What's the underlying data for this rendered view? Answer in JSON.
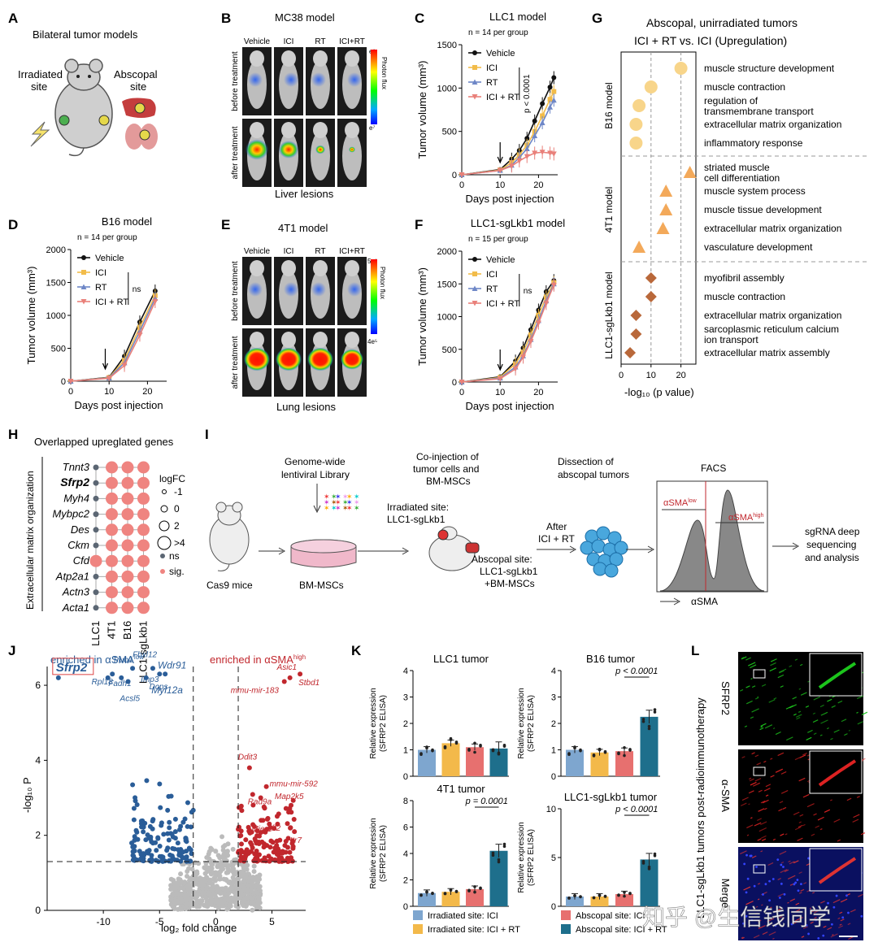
{
  "panels": {
    "A": {
      "letter": "A",
      "title": "Bilateral tumor models",
      "irradiated": [
        "Irradiated",
        "site"
      ],
      "abscopal": [
        "Abscopal",
        "site"
      ]
    },
    "B": {
      "letter": "B",
      "title": "MC38 model",
      "cols": [
        "Vehicle",
        "ICI",
        "RT",
        "ICI+RT"
      ],
      "rows": [
        "before treatment",
        "after treatment"
      ],
      "footer": "Liver lesions",
      "scale_top": "e⁸",
      "scale_bottom": "e⁷",
      "scale_label": "Photon flux"
    },
    "E": {
      "letter": "E",
      "title": "4T1 model",
      "cols": [
        "Vehicle",
        "ICI",
        "RT",
        "ICI+RT"
      ],
      "rows": [
        "before treatment",
        "after treatment"
      ],
      "footer": "Lung lesions",
      "scale_top": "5e⁶",
      "scale_bottom": "4e⁵",
      "scale_label": "Photon flux"
    },
    "G": {
      "letter": "G",
      "title": [
        "Abscopal, unirradiated tumors",
        "ICI + RT vs. ICI (Upregulation)"
      ],
      "xlabel": "-log₁₀ (p value)"
    },
    "H": {
      "letter": "H",
      "title": "Overlapped upreglated genes",
      "ylabel": "Extracellular matrix organization",
      "legend_title": "logFC",
      "legend_sizes": [
        "-1",
        "0",
        "2",
        ">4"
      ],
      "legend_ns": "ns",
      "legend_sig": "sig."
    },
    "I": {
      "letter": "I",
      "mice": "Cas9 mice",
      "library": [
        "Genome-wide",
        "lentiviral Library"
      ],
      "bmsc": "BM-MSCs",
      "coinj": [
        "Co-injection of",
        "tumor cells and",
        "BM-MSCs"
      ],
      "irr": [
        "Irradiated site:",
        "LLC1-sgLkb1"
      ],
      "absc": [
        "Abscopal site:",
        "LLC1-sgLkb1",
        "+BM-MSCs"
      ],
      "after": [
        "After",
        "ICI + RT"
      ],
      "dissection": [
        "Dissection of",
        "abscopal tumors"
      ],
      "facs": "FACS",
      "low": "αSMA",
      "low_sup": "low",
      "high": "αSMA",
      "high_sup": "high",
      "axis": "αSMA",
      "seq": [
        "sgRNA deep",
        "sequencing",
        "and analysis"
      ]
    },
    "J": {
      "letter": "J",
      "enriched_low": "enriched in αSMA",
      "low_sup": "low",
      "enriched_high": "enriched in αSMA",
      "high_sup": "high",
      "highlight": "Sfrp2",
      "xlabel": "log₂ fold change",
      "ylabel": "-log₁₀ P"
    },
    "K": {
      "letter": "K",
      "ylabel": [
        "Relative expression",
        "(SFRP2 ELISA)"
      ],
      "legend": [
        "Irradiated site: ICI",
        "Irradiated site: ICI + RT",
        "Abscopal site: ICI",
        "Abscopal site: ICI + RT"
      ]
    },
    "L": {
      "letter": "L",
      "side": "LLC1-sgLkb1 tumors post-radioimmunotherapy",
      "channels": [
        "SFRP2",
        "α-SMA",
        "Merge"
      ]
    }
  },
  "watermark": "知乎 @生信钱同学",
  "colors": {
    "vehicle": "#111111",
    "ici": "#f2bc4a",
    "rt": "#6e87c7",
    "icirt": "#e9807a",
    "b16": "#f8d58a",
    "t41": "#f3a95a",
    "llc": "#b9683a",
    "blue": "#2a5d98",
    "red": "#c1272d",
    "gray": "#bbbbbb",
    "k1": "#7ea6cf",
    "k2": "#f3b94a",
    "k3": "#e7706f",
    "k4": "#1e6f8c"
  },
  "chart_data": [
    {
      "id": "C",
      "type": "line",
      "title": "LLC1 model",
      "note": "n = 14 per group",
      "xlabel": "Days post injection",
      "ylabel": "Tumor volume (mm³)",
      "xlim": [
        0,
        25
      ],
      "ylim": [
        0,
        1500
      ],
      "xticks": [
        0,
        10,
        20
      ],
      "yticks": [
        0,
        500,
        1000,
        1500
      ],
      "stat": "p < 0.0001",
      "arrow_x": 10,
      "x": [
        0,
        10,
        13,
        15,
        17,
        19,
        21,
        23,
        24
      ],
      "series": [
        {
          "name": "Vehicle",
          "values": [
            0,
            60,
            180,
            280,
            420,
            620,
            820,
            1010,
            1120
          ]
        },
        {
          "name": "ICI",
          "values": [
            0,
            55,
            140,
            230,
            340,
            500,
            680,
            870,
            960
          ]
        },
        {
          "name": "RT",
          "values": [
            0,
            50,
            110,
            200,
            300,
            450,
            600,
            780,
            860
          ]
        },
        {
          "name": "ICI + RT",
          "values": [
            0,
            50,
            100,
            160,
            210,
            250,
            260,
            250,
            240
          ]
        }
      ]
    },
    {
      "id": "D",
      "type": "line",
      "title": "B16 model",
      "note": "n = 14 per group",
      "xlabel": "Days post injection",
      "ylabel": "Tumor volume (mm³)",
      "xlim": [
        0,
        25
      ],
      "ylim": [
        0,
        2000
      ],
      "xticks": [
        0,
        10,
        20
      ],
      "yticks": [
        0,
        500,
        1000,
        1500,
        2000
      ],
      "stat": "ns",
      "arrow_x": 9,
      "x": [
        0,
        10,
        14,
        18,
        22
      ],
      "series": [
        {
          "name": "Vehicle",
          "values": [
            0,
            60,
            380,
            900,
            1370
          ]
        },
        {
          "name": "ICI",
          "values": [
            0,
            55,
            320,
            820,
            1300
          ]
        },
        {
          "name": "RT",
          "values": [
            0,
            50,
            280,
            760,
            1260
          ]
        },
        {
          "name": "ICI + RT",
          "values": [
            0,
            45,
            240,
            700,
            1210
          ]
        }
      ]
    },
    {
      "id": "F",
      "type": "line",
      "title": "LLC1-sgLkb1 model",
      "note": "n = 15 per group",
      "xlabel": "Days post injection",
      "ylabel": "Tumor volume (mm³)",
      "xlim": [
        0,
        25
      ],
      "ylim": [
        0,
        2000
      ],
      "xticks": [
        0,
        10,
        20
      ],
      "yticks": [
        0,
        500,
        1000,
        1500,
        2000
      ],
      "stat": "ns",
      "arrow_x": 10,
      "x": [
        0,
        10,
        14,
        16,
        18,
        20,
        22,
        24
      ],
      "series": [
        {
          "name": "Vehicle",
          "values": [
            0,
            80,
            320,
            520,
            800,
            1100,
            1380,
            1550
          ]
        },
        {
          "name": "ICI",
          "values": [
            0,
            70,
            280,
            460,
            720,
            1020,
            1300,
            1520
          ]
        },
        {
          "name": "RT",
          "values": [
            0,
            60,
            230,
            400,
            650,
            940,
            1240,
            1500
          ]
        },
        {
          "name": "ICI + RT",
          "values": [
            0,
            50,
            200,
            380,
            620,
            900,
            1200,
            1480
          ]
        }
      ]
    },
    {
      "id": "G",
      "type": "scatter",
      "xlim": [
        0,
        25
      ],
      "xticks": [
        0,
        10,
        20
      ],
      "groups": [
        {
          "name": "B16 model",
          "marker": "circle",
          "terms": [
            "muscle structure development",
            "muscle contraction",
            "regulation of transmembrane transport",
            "extracellular matrix organization",
            "inflammatory response"
          ],
          "values": [
            20,
            10,
            6,
            5,
            5
          ]
        },
        {
          "name": "4T1 model",
          "marker": "triangle",
          "terms": [
            "striated muscle cell differentiation",
            "muscle system process",
            "muscle tissue development",
            "extracellular matrix organization",
            "vasculature development"
          ],
          "values": [
            23,
            15,
            15,
            14,
            6
          ]
        },
        {
          "name": "LLC1-sgLkb1 model",
          "marker": "diamond",
          "terms": [
            "myofibril assembly",
            "muscle contraction",
            "extracellular matrix organization",
            "sarcoplasmic reticulum calcium ion transport",
            "extracellular matrix assembly"
          ],
          "values": [
            10,
            10,
            5,
            5,
            3
          ]
        }
      ]
    },
    {
      "id": "H",
      "type": "heatmap",
      "genes": [
        "Tnnt3",
        "Sfrp2",
        "Myh4",
        "Mybpc2",
        "Des",
        "Ckm",
        "Cfd",
        "Atp2a1",
        "Actn3",
        "Acta1"
      ],
      "columns": [
        "LLC1",
        "4T1",
        "B16",
        "LLC1-sgLkb1"
      ],
      "sig": [
        [
          0,
          1,
          1,
          1
        ],
        [
          0,
          1,
          1,
          1
        ],
        [
          0,
          1,
          1,
          1
        ],
        [
          0,
          1,
          1,
          1
        ],
        [
          0,
          1,
          1,
          1
        ],
        [
          0,
          1,
          1,
          1
        ],
        [
          1,
          1,
          1,
          1
        ],
        [
          0,
          1,
          1,
          1
        ],
        [
          0,
          1,
          1,
          1
        ],
        [
          0,
          1,
          1,
          1
        ]
      ]
    },
    {
      "id": "J",
      "type": "scatter",
      "xlim": [
        -15,
        8
      ],
      "ylim": [
        0,
        6.5
      ],
      "xticks": [
        -10,
        -5,
        0,
        5
      ],
      "yticks": [
        0,
        2,
        4,
        6
      ],
      "thresholds": {
        "x": [
          -2,
          2
        ],
        "y": 1.3
      },
      "labels_low": [
        {
          "gene": "Sfrp2",
          "x": -14,
          "y": 6.2
        },
        {
          "gene": "Trub1",
          "x": -9.2,
          "y": 6.3
        },
        {
          "gene": "Fbxl12",
          "x": -7.4,
          "y": 6.45
        },
        {
          "gene": "Wdr91",
          "x": -5.6,
          "y": 6.45
        },
        {
          "gene": "Imp3",
          "x": -4.5,
          "y": 6.3
        },
        {
          "gene": "Rpl18",
          "x": -9.6,
          "y": 6.2
        },
        {
          "gene": "Fadh1",
          "x": -8.4,
          "y": 6.2
        },
        {
          "gene": "Dcps",
          "x": -6.2,
          "y": 6.2
        },
        {
          "gene": "Myl12a",
          "x": -5.0,
          "y": 6.3
        },
        {
          "gene": "Acsl5",
          "x": -7.8,
          "y": 6.1
        }
      ],
      "labels_high": [
        {
          "gene": "Asic1",
          "x": 6.6,
          "y": 6.2
        },
        {
          "gene": "mmu-mir-183",
          "x": 6.1,
          "y": 6.1
        },
        {
          "gene": "Stbd1",
          "x": 7.5,
          "y": 6.3
        },
        {
          "gene": "Ddit3",
          "x": 3.0,
          "y": 3.8
        },
        {
          "gene": "mmu-mir-592",
          "x": 4.5,
          "y": 3.3
        },
        {
          "gene": "Rad9a",
          "x": 4.0,
          "y": 3.0
        },
        {
          "gene": "Map2k5",
          "x": 6.7,
          "y": 2.8
        },
        {
          "gene": "Mier1",
          "x": 4.2,
          "y": 2.4
        },
        {
          "gene": "Aff2",
          "x": 5.5,
          "y": 2.3
        },
        {
          "gene": "Htr7",
          "x": 7.0,
          "y": 2.1
        }
      ]
    },
    {
      "id": "K1",
      "type": "bar",
      "title": "LLC1 tumor",
      "ylim": [
        0,
        4
      ],
      "yticks": [
        0,
        1,
        2,
        3,
        4
      ],
      "values": [
        1.0,
        1.25,
        1.1,
        1.05
      ],
      "stat": ""
    },
    {
      "id": "K2",
      "type": "bar",
      "title": "B16 tumor",
      "ylim": [
        0,
        4
      ],
      "yticks": [
        0,
        1,
        2,
        3,
        4
      ],
      "values": [
        1.0,
        0.9,
        0.95,
        2.25
      ],
      "stat": "p < 0.0001"
    },
    {
      "id": "K3",
      "type": "bar",
      "title": "4T1 tumor",
      "ylim": [
        0,
        8
      ],
      "yticks": [
        0,
        2,
        4,
        6,
        8
      ],
      "values": [
        1.0,
        1.1,
        1.3,
        4.2
      ],
      "stat": "p = 0.0001"
    },
    {
      "id": "K4",
      "type": "bar",
      "title": "LLC1-sgLkb1 tumor",
      "ylim": [
        0,
        10
      ],
      "yticks": [
        0,
        5,
        10
      ],
      "values": [
        1.0,
        1.0,
        1.25,
        4.8
      ],
      "stat": "p < 0.0001"
    }
  ]
}
